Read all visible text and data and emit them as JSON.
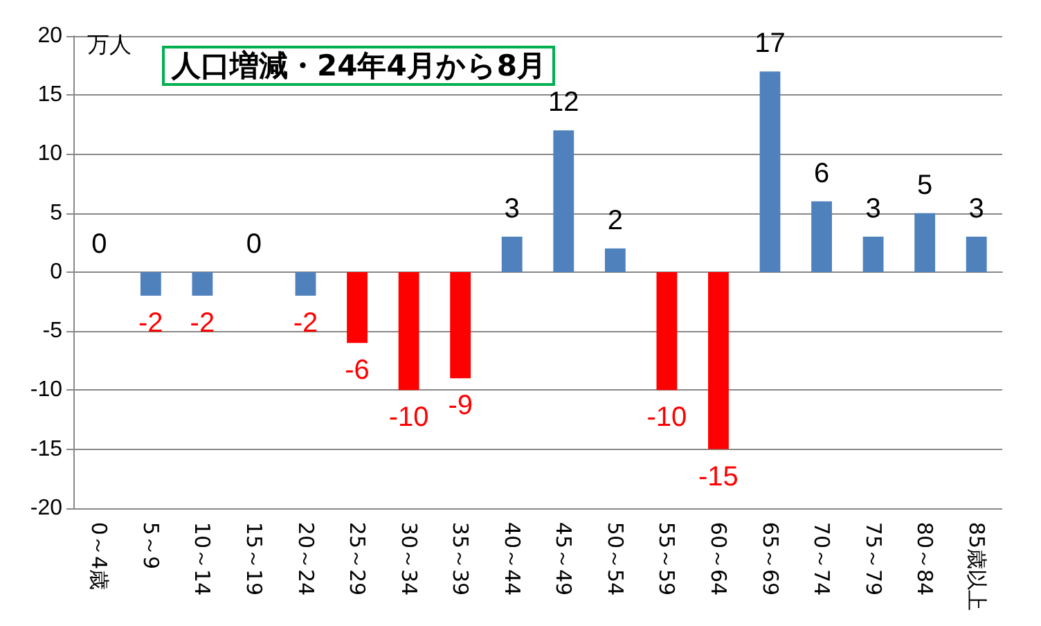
{
  "chart_data": {
    "type": "bar",
    "title": "人口増減・24年4月から8月",
    "ylabel": "万人",
    "categories": [
      "0～4歳",
      "5～9",
      "10～14",
      "15～19",
      "20～24",
      "25～29",
      "30～34",
      "35～39",
      "40～44",
      "45～49",
      "50～54",
      "55～59",
      "60～64",
      "65～69",
      "70～74",
      "75～79",
      "80～84",
      "85歳以上"
    ],
    "values": [
      0,
      -2,
      -2,
      0,
      -2,
      -6,
      -10,
      -9,
      3,
      12,
      2,
      -10,
      -15,
      17,
      6,
      3,
      5,
      3
    ],
    "colors": [
      "#4f81bd",
      "#4f81bd",
      "#4f81bd",
      "#4f81bd",
      "#4f81bd",
      "#ff0000",
      "#ff0000",
      "#ff0000",
      "#4f81bd",
      "#4f81bd",
      "#4f81bd",
      "#ff0000",
      "#ff0000",
      "#4f81bd",
      "#4f81bd",
      "#4f81bd",
      "#4f81bd",
      "#4f81bd"
    ],
    "ylim": [
      -20,
      20
    ],
    "yticks": [
      -20,
      -15,
      -10,
      -5,
      0,
      5,
      10,
      15,
      20
    ],
    "grid": "y",
    "data_labels": true
  }
}
